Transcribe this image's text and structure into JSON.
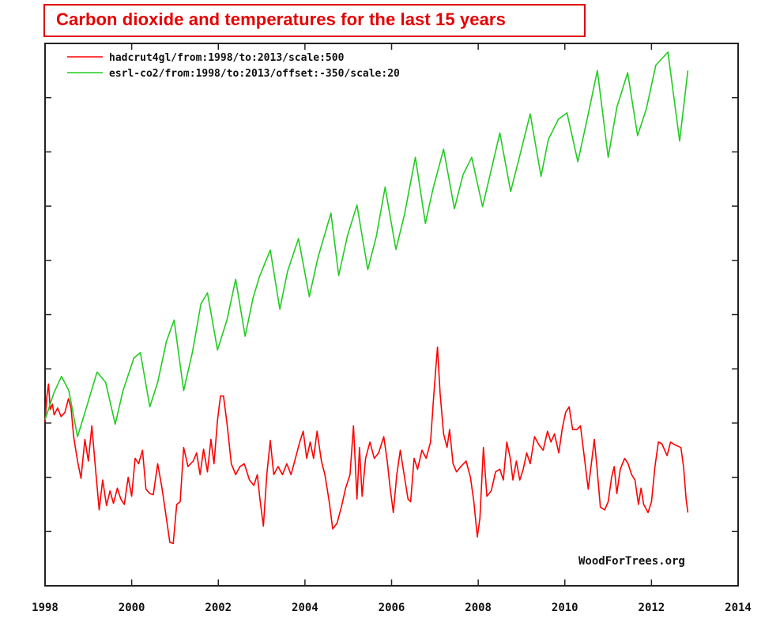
{
  "title": "Carbon dioxide and temperatures for the last 15 years",
  "credit": "WoodForTrees.org",
  "colors": {
    "title": "#e60000",
    "hadcrut": "#ff0000",
    "co2": "#22cc22",
    "axis": "#222222"
  },
  "chart_data": {
    "type": "line",
    "title": "Carbon dioxide and temperatures for the last 15 years",
    "xlabel": "",
    "ylabel": "",
    "xlim": [
      1998,
      2014
    ],
    "ylim": [
      0,
      10
    ],
    "x_ticks": [
      "1998",
      "2000",
      "2002",
      "2004",
      "2006",
      "2008",
      "2010",
      "2012",
      "2014"
    ],
    "y_ticks_unlabeled": [
      1,
      2,
      3,
      4,
      5,
      6,
      7,
      8,
      9
    ],
    "y_units_note": "unlabeled tick units (0 = bottom axis, 10 = top)",
    "grid": false,
    "legend_position": "top-left",
    "series": [
      {
        "name": "hadcrut4gl/from:1998/to:2013/scale:500",
        "color": "#ff0000",
        "points": [
          [
            1998.0,
            3.02
          ],
          [
            1998.04,
            3.48
          ],
          [
            1998.08,
            3.72
          ],
          [
            1998.12,
            3.25
          ],
          [
            1998.17,
            3.35
          ],
          [
            1998.21,
            3.15
          ],
          [
            1998.29,
            3.28
          ],
          [
            1998.37,
            3.12
          ],
          [
            1998.46,
            3.2
          ],
          [
            1998.54,
            3.45
          ],
          [
            1998.6,
            3.28
          ],
          [
            1998.66,
            2.75
          ],
          [
            1998.75,
            2.3
          ],
          [
            1998.83,
            1.98
          ],
          [
            1998.92,
            2.7
          ],
          [
            1999.0,
            2.3
          ],
          [
            1999.08,
            2.95
          ],
          [
            1999.16,
            2.2
          ],
          [
            1999.25,
            1.4
          ],
          [
            1999.33,
            1.95
          ],
          [
            1999.42,
            1.48
          ],
          [
            1999.5,
            1.75
          ],
          [
            1999.58,
            1.52
          ],
          [
            1999.67,
            1.8
          ],
          [
            1999.75,
            1.6
          ],
          [
            1999.83,
            1.5
          ],
          [
            1999.92,
            2.0
          ],
          [
            2000.0,
            1.65
          ],
          [
            2000.08,
            2.35
          ],
          [
            2000.16,
            2.25
          ],
          [
            2000.25,
            2.5
          ],
          [
            2000.33,
            1.78
          ],
          [
            2000.42,
            1.7
          ],
          [
            2000.5,
            1.68
          ],
          [
            2000.6,
            2.25
          ],
          [
            2000.7,
            1.8
          ],
          [
            2000.8,
            1.25
          ],
          [
            2000.88,
            0.8
          ],
          [
            2000.96,
            0.78
          ],
          [
            2001.04,
            1.5
          ],
          [
            2001.12,
            1.55
          ],
          [
            2001.2,
            2.55
          ],
          [
            2001.3,
            2.2
          ],
          [
            2001.42,
            2.3
          ],
          [
            2001.5,
            2.45
          ],
          [
            2001.58,
            2.05
          ],
          [
            2001.66,
            2.52
          ],
          [
            2001.75,
            2.1
          ],
          [
            2001.83,
            2.7
          ],
          [
            2001.9,
            2.25
          ],
          [
            2001.98,
            3.05
          ],
          [
            2002.05,
            3.5
          ],
          [
            2002.12,
            3.5
          ],
          [
            2002.2,
            3.0
          ],
          [
            2002.3,
            2.25
          ],
          [
            2002.4,
            2.05
          ],
          [
            2002.5,
            2.2
          ],
          [
            2002.6,
            2.25
          ],
          [
            2002.72,
            1.95
          ],
          [
            2002.82,
            1.85
          ],
          [
            2002.9,
            2.05
          ],
          [
            2002.96,
            1.6
          ],
          [
            2003.04,
            1.1
          ],
          [
            2003.12,
            2.05
          ],
          [
            2003.2,
            2.68
          ],
          [
            2003.28,
            2.05
          ],
          [
            2003.38,
            2.2
          ],
          [
            2003.48,
            2.05
          ],
          [
            2003.58,
            2.25
          ],
          [
            2003.68,
            2.05
          ],
          [
            2003.78,
            2.35
          ],
          [
            2003.88,
            2.65
          ],
          [
            2003.96,
            2.85
          ],
          [
            2004.04,
            2.35
          ],
          [
            2004.12,
            2.65
          ],
          [
            2004.2,
            2.35
          ],
          [
            2004.28,
            2.85
          ],
          [
            2004.38,
            2.3
          ],
          [
            2004.46,
            2.05
          ],
          [
            2004.56,
            1.55
          ],
          [
            2004.64,
            1.05
          ],
          [
            2004.74,
            1.15
          ],
          [
            2004.84,
            1.45
          ],
          [
            2004.94,
            1.8
          ],
          [
            2005.04,
            2.05
          ],
          [
            2005.12,
            2.95
          ],
          [
            2005.2,
            1.6
          ],
          [
            2005.26,
            2.55
          ],
          [
            2005.32,
            1.65
          ],
          [
            2005.4,
            2.35
          ],
          [
            2005.5,
            2.65
          ],
          [
            2005.6,
            2.35
          ],
          [
            2005.7,
            2.45
          ],
          [
            2005.82,
            2.75
          ],
          [
            2005.9,
            2.3
          ],
          [
            2005.96,
            1.85
          ],
          [
            2006.04,
            1.35
          ],
          [
            2006.12,
            2.05
          ],
          [
            2006.2,
            2.5
          ],
          [
            2006.3,
            2.0
          ],
          [
            2006.38,
            1.6
          ],
          [
            2006.44,
            1.55
          ],
          [
            2006.52,
            2.35
          ],
          [
            2006.6,
            2.15
          ],
          [
            2006.7,
            2.5
          ],
          [
            2006.8,
            2.35
          ],
          [
            2006.9,
            2.65
          ],
          [
            2006.96,
            3.35
          ],
          [
            2007.02,
            4.0
          ],
          [
            2007.06,
            4.4
          ],
          [
            2007.12,
            3.55
          ],
          [
            2007.2,
            2.8
          ],
          [
            2007.28,
            2.55
          ],
          [
            2007.34,
            2.88
          ],
          [
            2007.42,
            2.25
          ],
          [
            2007.5,
            2.1
          ],
          [
            2007.6,
            2.2
          ],
          [
            2007.72,
            2.3
          ],
          [
            2007.82,
            2.0
          ],
          [
            2007.9,
            1.55
          ],
          [
            2007.98,
            0.9
          ],
          [
            2008.04,
            1.25
          ],
          [
            2008.12,
            2.55
          ],
          [
            2008.2,
            1.65
          ],
          [
            2008.3,
            1.75
          ],
          [
            2008.4,
            2.1
          ],
          [
            2008.5,
            2.15
          ],
          [
            2008.58,
            1.95
          ],
          [
            2008.66,
            2.65
          ],
          [
            2008.74,
            2.35
          ],
          [
            2008.8,
            1.95
          ],
          [
            2008.88,
            2.3
          ],
          [
            2008.96,
            1.95
          ],
          [
            2009.04,
            2.15
          ],
          [
            2009.12,
            2.45
          ],
          [
            2009.2,
            2.25
          ],
          [
            2009.3,
            2.75
          ],
          [
            2009.4,
            2.6
          ],
          [
            2009.5,
            2.5
          ],
          [
            2009.6,
            2.85
          ],
          [
            2009.68,
            2.65
          ],
          [
            2009.76,
            2.8
          ],
          [
            2009.86,
            2.45
          ],
          [
            2009.94,
            2.9
          ],
          [
            2010.02,
            3.2
          ],
          [
            2010.1,
            3.3
          ],
          [
            2010.18,
            2.88
          ],
          [
            2010.28,
            2.88
          ],
          [
            2010.36,
            2.95
          ],
          [
            2010.46,
            2.3
          ],
          [
            2010.54,
            1.78
          ],
          [
            2010.62,
            2.3
          ],
          [
            2010.68,
            2.7
          ],
          [
            2010.74,
            2.2
          ],
          [
            2010.82,
            1.45
          ],
          [
            2010.92,
            1.4
          ],
          [
            2011.0,
            1.55
          ],
          [
            2011.08,
            2.0
          ],
          [
            2011.14,
            2.2
          ],
          [
            2011.2,
            1.7
          ],
          [
            2011.28,
            2.15
          ],
          [
            2011.38,
            2.35
          ],
          [
            2011.46,
            2.25
          ],
          [
            2011.54,
            2.05
          ],
          [
            2011.62,
            1.95
          ],
          [
            2011.7,
            1.5
          ],
          [
            2011.76,
            1.8
          ],
          [
            2011.82,
            1.5
          ],
          [
            2011.92,
            1.35
          ],
          [
            2012.0,
            1.55
          ],
          [
            2012.08,
            2.2
          ],
          [
            2012.16,
            2.65
          ],
          [
            2012.24,
            2.62
          ],
          [
            2012.36,
            2.4
          ],
          [
            2012.44,
            2.65
          ],
          [
            2012.54,
            2.6
          ],
          [
            2012.68,
            2.55
          ],
          [
            2012.74,
            2.2
          ],
          [
            2012.8,
            1.6
          ],
          [
            2012.84,
            1.35
          ]
        ]
      },
      {
        "name": "esrl-co2/from:1998/to:2013/offset:-350/scale:20",
        "color": "#22cc22",
        "points": [
          [
            1998.0,
            3.06
          ],
          [
            1998.2,
            3.55
          ],
          [
            1998.38,
            3.86
          ],
          [
            1998.55,
            3.6
          ],
          [
            1998.75,
            2.75
          ],
          [
            1998.96,
            3.3
          ],
          [
            1999.2,
            3.94
          ],
          [
            1999.4,
            3.75
          ],
          [
            1999.62,
            2.98
          ],
          [
            1999.8,
            3.6
          ],
          [
            2000.05,
            4.2
          ],
          [
            2000.2,
            4.3
          ],
          [
            2000.42,
            3.3
          ],
          [
            2000.6,
            3.75
          ],
          [
            2000.8,
            4.5
          ],
          [
            2000.98,
            4.9
          ],
          [
            2001.2,
            3.6
          ],
          [
            2001.4,
            4.3
          ],
          [
            2001.6,
            5.2
          ],
          [
            2001.75,
            5.4
          ],
          [
            2001.98,
            4.35
          ],
          [
            2002.2,
            4.9
          ],
          [
            2002.4,
            5.65
          ],
          [
            2002.62,
            4.6
          ],
          [
            2002.8,
            5.3
          ],
          [
            2002.95,
            5.7
          ],
          [
            2003.2,
            6.19
          ],
          [
            2003.42,
            5.1
          ],
          [
            2003.6,
            5.8
          ],
          [
            2003.85,
            6.4
          ],
          [
            2004.1,
            5.33
          ],
          [
            2004.3,
            6.05
          ],
          [
            2004.6,
            6.87
          ],
          [
            2004.78,
            5.72
          ],
          [
            2004.98,
            6.45
          ],
          [
            2005.2,
            7.02
          ],
          [
            2005.45,
            5.83
          ],
          [
            2005.65,
            6.45
          ],
          [
            2005.85,
            7.35
          ],
          [
            2006.1,
            6.2
          ],
          [
            2006.3,
            6.85
          ],
          [
            2006.55,
            7.9
          ],
          [
            2006.78,
            6.68
          ],
          [
            2006.95,
            7.3
          ],
          [
            2007.2,
            8.05
          ],
          [
            2007.45,
            6.95
          ],
          [
            2007.65,
            7.58
          ],
          [
            2007.85,
            7.9
          ],
          [
            2008.1,
            6.99
          ],
          [
            2008.28,
            7.6
          ],
          [
            2008.5,
            8.35
          ],
          [
            2008.75,
            7.27
          ],
          [
            2008.95,
            7.9
          ],
          [
            2009.2,
            8.7
          ],
          [
            2009.45,
            7.55
          ],
          [
            2009.62,
            8.23
          ],
          [
            2009.85,
            8.6
          ],
          [
            2010.05,
            8.72
          ],
          [
            2010.3,
            7.82
          ],
          [
            2010.5,
            8.55
          ],
          [
            2010.75,
            9.5
          ],
          [
            2011.0,
            7.9
          ],
          [
            2011.2,
            8.82
          ],
          [
            2011.45,
            9.46
          ],
          [
            2011.68,
            8.3
          ],
          [
            2011.88,
            8.79
          ],
          [
            2012.1,
            9.6
          ],
          [
            2012.38,
            9.84
          ],
          [
            2012.65,
            8.2
          ],
          [
            2012.84,
            9.5
          ]
        ]
      }
    ]
  }
}
